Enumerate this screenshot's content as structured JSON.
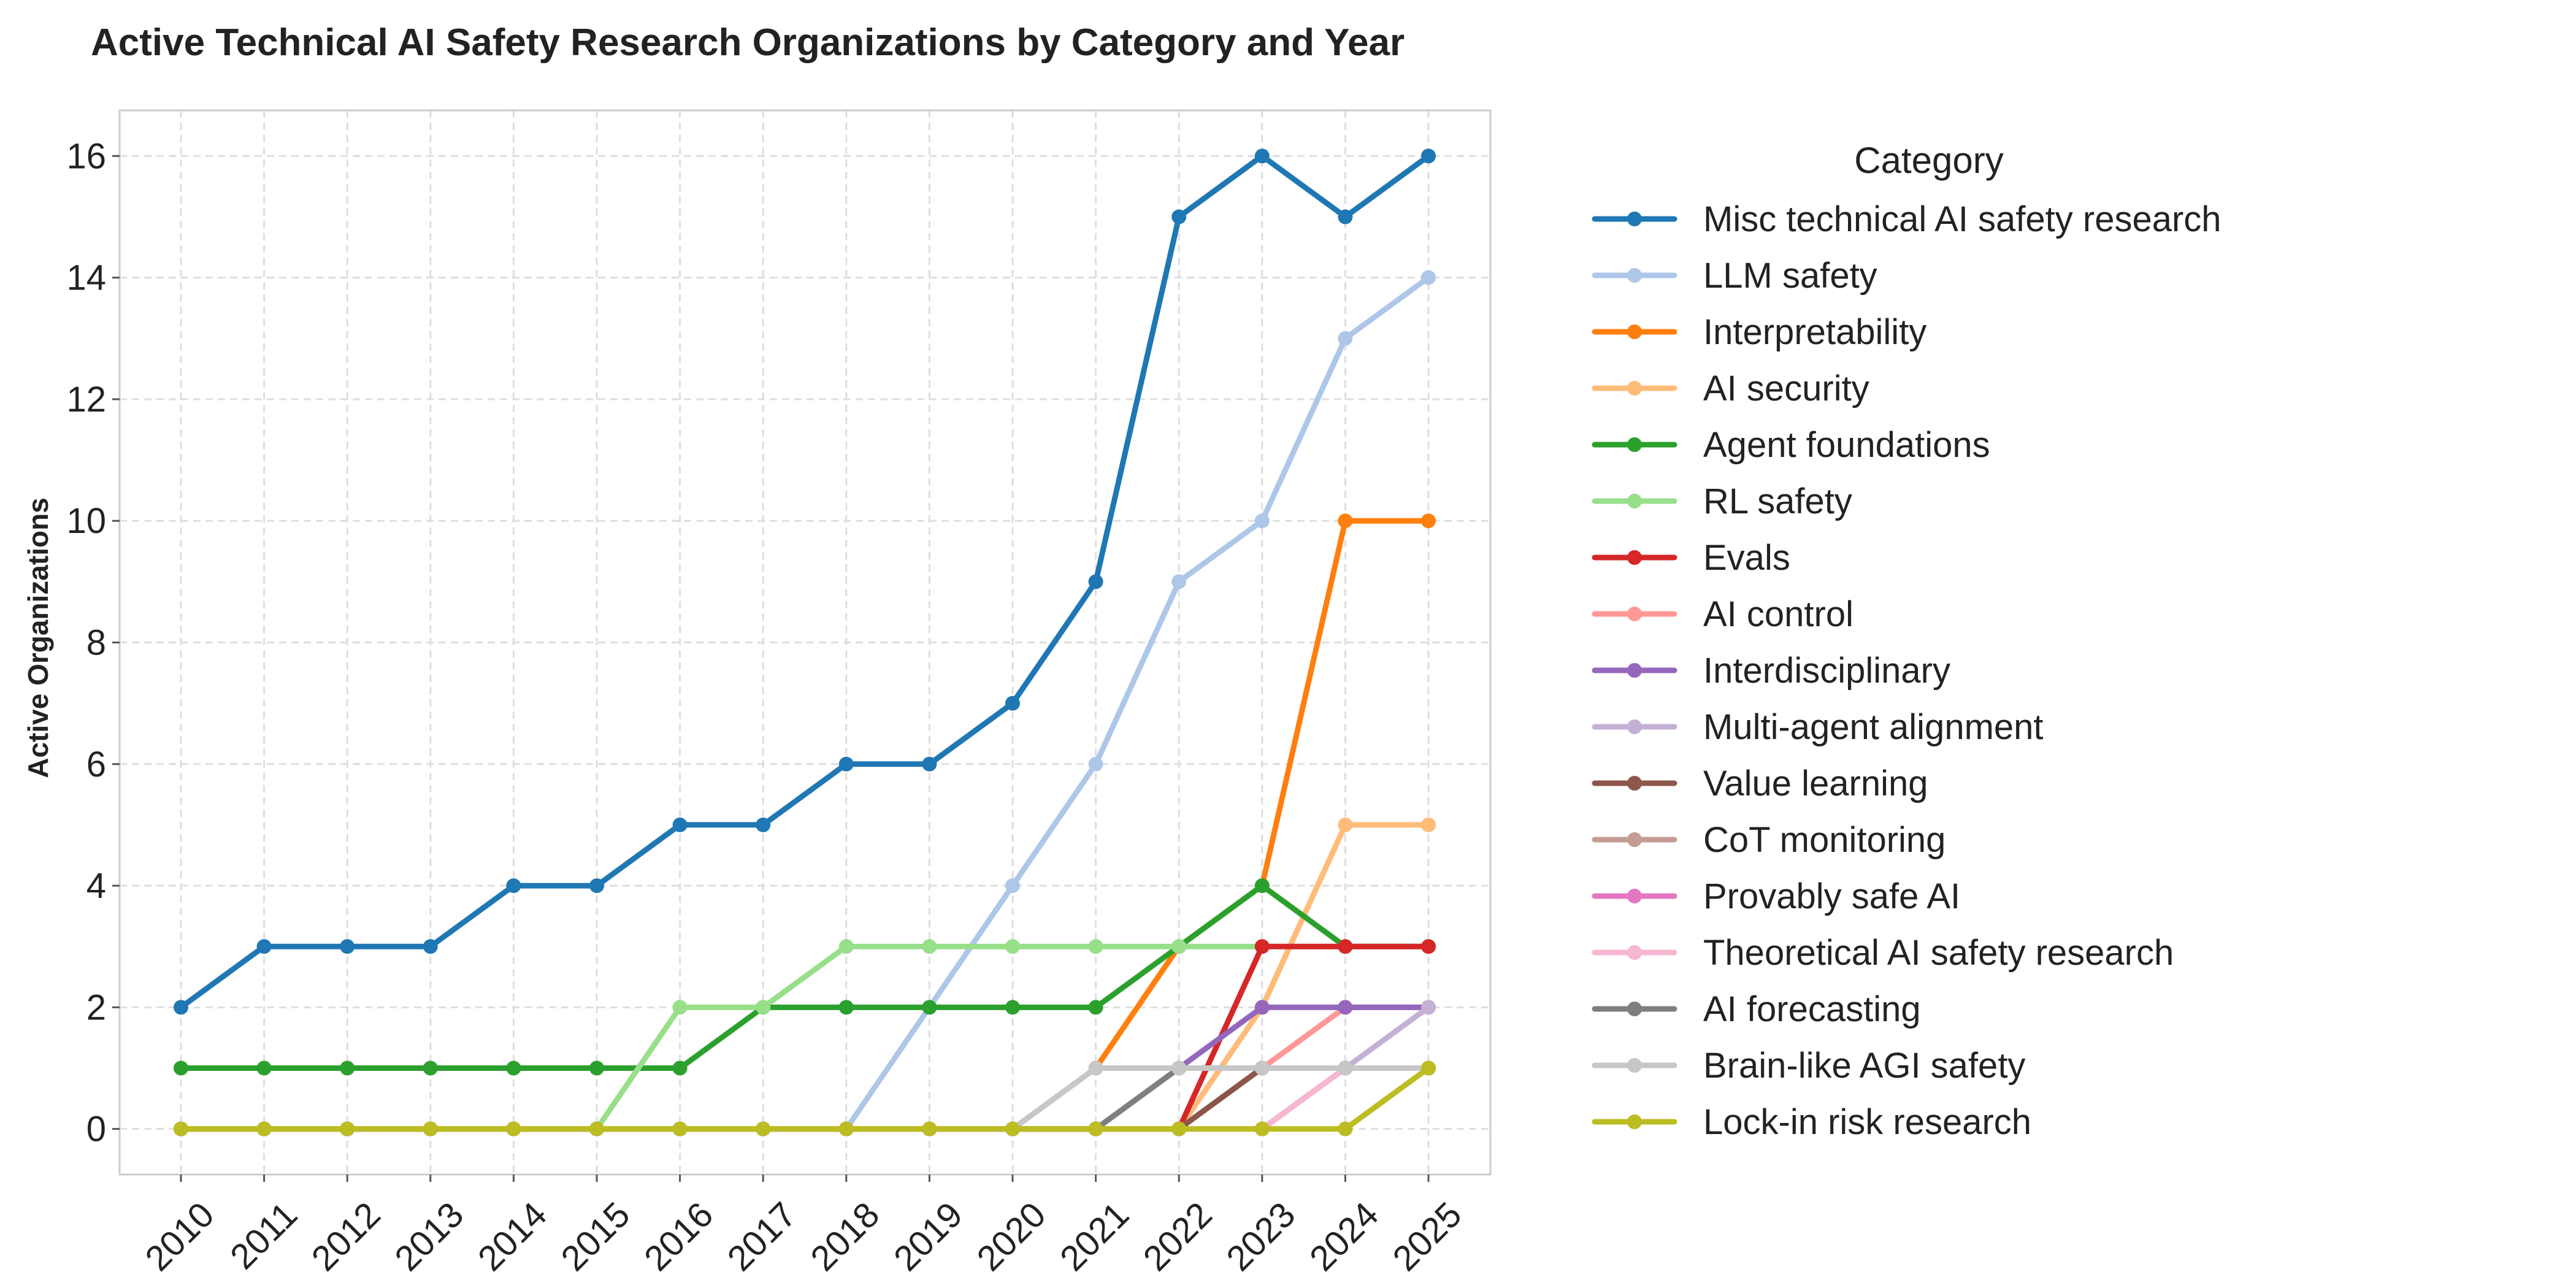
{
  "chart_data": {
    "type": "line",
    "title": "Active Technical AI Safety Research Organizations by Category and Year",
    "xlabel": "",
    "ylabel": "Active Organizations",
    "legend_title": "Category",
    "legend_position": "outside-right",
    "grid": true,
    "x": [
      2010,
      2011,
      2012,
      2013,
      2014,
      2015,
      2016,
      2017,
      2018,
      2019,
      2020,
      2021,
      2022,
      2023,
      2024,
      2025
    ],
    "x_tick_labels": [
      "2010",
      "2011",
      "2012",
      "2013",
      "2014",
      "2015",
      "2016",
      "2017",
      "2018",
      "2019",
      "2020",
      "2021",
      "2022",
      "2023",
      "2024",
      "2025"
    ],
    "ylim": [
      -0.75,
      16.75
    ],
    "y_ticks": [
      0,
      2,
      4,
      6,
      8,
      10,
      12,
      14,
      16
    ],
    "y_tick_labels": [
      "0",
      "2",
      "4",
      "6",
      "8",
      "10",
      "12",
      "14",
      "16"
    ],
    "series": [
      {
        "name": "Misc technical AI safety research",
        "color": "#1f77b4",
        "values": [
          2,
          3,
          3,
          3,
          4,
          4,
          5,
          5,
          6,
          6,
          7,
          9,
          15,
          16,
          15,
          16
        ]
      },
      {
        "name": "LLM safety",
        "color": "#aec7e8",
        "values": [
          0,
          0,
          0,
          0,
          0,
          0,
          0,
          0,
          0,
          2,
          4,
          6,
          9,
          10,
          13,
          14
        ]
      },
      {
        "name": "Interpretability",
        "color": "#ff7f0e",
        "values": [
          0,
          0,
          0,
          0,
          0,
          0,
          0,
          0,
          0,
          0,
          0,
          1,
          3,
          4,
          10,
          10
        ]
      },
      {
        "name": "AI security",
        "color": "#ffbb78",
        "values": [
          0,
          0,
          0,
          0,
          0,
          0,
          0,
          0,
          0,
          0,
          0,
          0,
          0,
          2,
          5,
          5
        ]
      },
      {
        "name": "Agent foundations",
        "color": "#2ca02c",
        "values": [
          1,
          1,
          1,
          1,
          1,
          1,
          1,
          2,
          2,
          2,
          2,
          2,
          3,
          4,
          3,
          3
        ]
      },
      {
        "name": "RL safety",
        "color": "#98df8a",
        "values": [
          0,
          0,
          0,
          0,
          0,
          0,
          2,
          2,
          3,
          3,
          3,
          3,
          3,
          3,
          3,
          3
        ]
      },
      {
        "name": "Evals",
        "color": "#d62728",
        "values": [
          0,
          0,
          0,
          0,
          0,
          0,
          0,
          0,
          0,
          0,
          0,
          0,
          0,
          3,
          3,
          3
        ]
      },
      {
        "name": "AI control",
        "color": "#ff9896",
        "values": [
          0,
          0,
          0,
          0,
          0,
          0,
          0,
          0,
          0,
          0,
          0,
          0,
          0,
          1,
          2,
          2
        ]
      },
      {
        "name": "Interdisciplinary",
        "color": "#9467bd",
        "values": [
          0,
          0,
          0,
          0,
          0,
          0,
          0,
          0,
          0,
          0,
          0,
          0,
          1,
          2,
          2,
          2
        ]
      },
      {
        "name": "Multi-agent alignment",
        "color": "#c5b0d5",
        "values": [
          0,
          0,
          0,
          0,
          0,
          0,
          0,
          0,
          0,
          0,
          0,
          0,
          0,
          1,
          1,
          2
        ]
      },
      {
        "name": "Value learning",
        "color": "#8c564b",
        "values": [
          0,
          0,
          0,
          0,
          0,
          0,
          0,
          0,
          0,
          0,
          0,
          0,
          0,
          1,
          1,
          1
        ]
      },
      {
        "name": "CoT monitoring",
        "color": "#c49c94",
        "values": [
          0,
          0,
          0,
          0,
          0,
          0,
          0,
          0,
          0,
          0,
          0,
          0,
          0,
          0,
          1,
          1
        ]
      },
      {
        "name": "Provably safe AI",
        "color": "#e377c2",
        "values": [
          0,
          0,
          0,
          0,
          0,
          0,
          0,
          0,
          0,
          0,
          0,
          0,
          0,
          0,
          1,
          1
        ]
      },
      {
        "name": "Theoretical AI safety research",
        "color": "#f7b6d2",
        "values": [
          0,
          0,
          0,
          0,
          0,
          0,
          0,
          0,
          0,
          0,
          0,
          0,
          0,
          0,
          1,
          1
        ]
      },
      {
        "name": "AI forecasting",
        "color": "#7f7f7f",
        "values": [
          0,
          0,
          0,
          0,
          0,
          0,
          0,
          0,
          0,
          0,
          0,
          0,
          1,
          1,
          1,
          1
        ]
      },
      {
        "name": "Brain-like AGI safety",
        "color": "#c7c7c7",
        "values": [
          0,
          0,
          0,
          0,
          0,
          0,
          0,
          0,
          0,
          0,
          0,
          1,
          1,
          1,
          1,
          1
        ]
      },
      {
        "name": "Lock-in risk research",
        "color": "#bcbd22",
        "values": [
          0,
          0,
          0,
          0,
          0,
          0,
          0,
          0,
          0,
          0,
          0,
          0,
          0,
          0,
          0,
          1
        ]
      }
    ]
  }
}
